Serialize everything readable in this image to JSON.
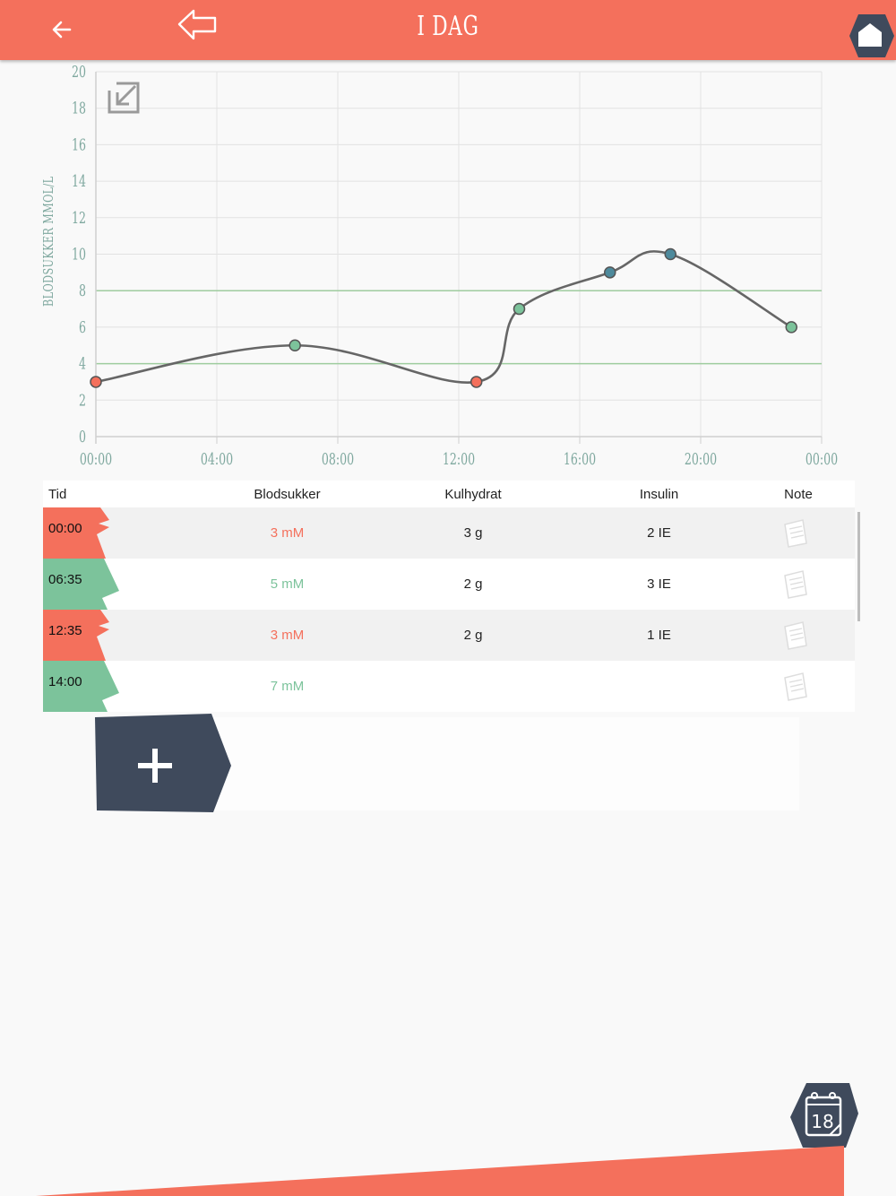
{
  "header": {
    "title": "I DAG"
  },
  "chart_data": {
    "type": "line",
    "ylabel": "BLODSUKKER MMOL/L",
    "ylim": [
      0,
      20
    ],
    "y_ticks": [
      "0",
      "2",
      "4",
      "6",
      "8",
      "10",
      "12",
      "14",
      "16",
      "18",
      "20"
    ],
    "xlim": [
      "00:00",
      "24:00"
    ],
    "x_ticks": [
      "00:00",
      "04:00",
      "08:00",
      "12:00",
      "16:00",
      "20:00",
      "00:00"
    ],
    "target_range": [
      4,
      8
    ],
    "grid": true,
    "points": [
      {
        "x": "00:00",
        "y": 3,
        "status": "low"
      },
      {
        "x": "06:35",
        "y": 5,
        "status": "ok"
      },
      {
        "x": "12:35",
        "y": 3,
        "status": "low"
      },
      {
        "x": "14:00",
        "y": 7,
        "status": "ok"
      },
      {
        "x": "17:00",
        "y": 9,
        "status": "high"
      },
      {
        "x": "19:00",
        "y": 10,
        "status": "high"
      },
      {
        "x": "23:00",
        "y": 6,
        "status": "ok"
      }
    ],
    "colors": {
      "low": "#f4705c",
      "ok": "#7cc39b",
      "high": "#4e8a9c",
      "line": "#666666",
      "target": "#9fcc9f"
    }
  },
  "table": {
    "headers": {
      "tid": "Tid",
      "blodsukker": "Blodsukker",
      "kulhydrat": "Kulhydrat",
      "insulin": "Insulin",
      "note": "Note"
    },
    "rows": [
      {
        "tid": "00:00",
        "blodsukker": "3 mM",
        "kulhydrat": "3 g",
        "insulin": "2 IE",
        "status": "low"
      },
      {
        "tid": "06:35",
        "blodsukker": "5 mM",
        "kulhydrat": "2 g",
        "insulin": "3 IE",
        "status": "ok"
      },
      {
        "tid": "12:35",
        "blodsukker": "3 mM",
        "kulhydrat": "2 g",
        "insulin": "1 IE",
        "status": "low"
      },
      {
        "tid": "14:00",
        "blodsukker": "7 mM",
        "kulhydrat": "",
        "insulin": "",
        "status": "ok"
      }
    ]
  },
  "icons": {
    "back": "arrow-left-icon",
    "back_outline": "arrow-outline-left-icon",
    "home": "home-icon",
    "expand": "expand-icon",
    "note": "note-icon",
    "add": "plus-icon",
    "calendar": "calendar-icon"
  },
  "calendar": {
    "day": "18"
  },
  "colors": {
    "accent": "#f4705c",
    "ok": "#7cc39b",
    "dark": "#3f4a5c"
  }
}
